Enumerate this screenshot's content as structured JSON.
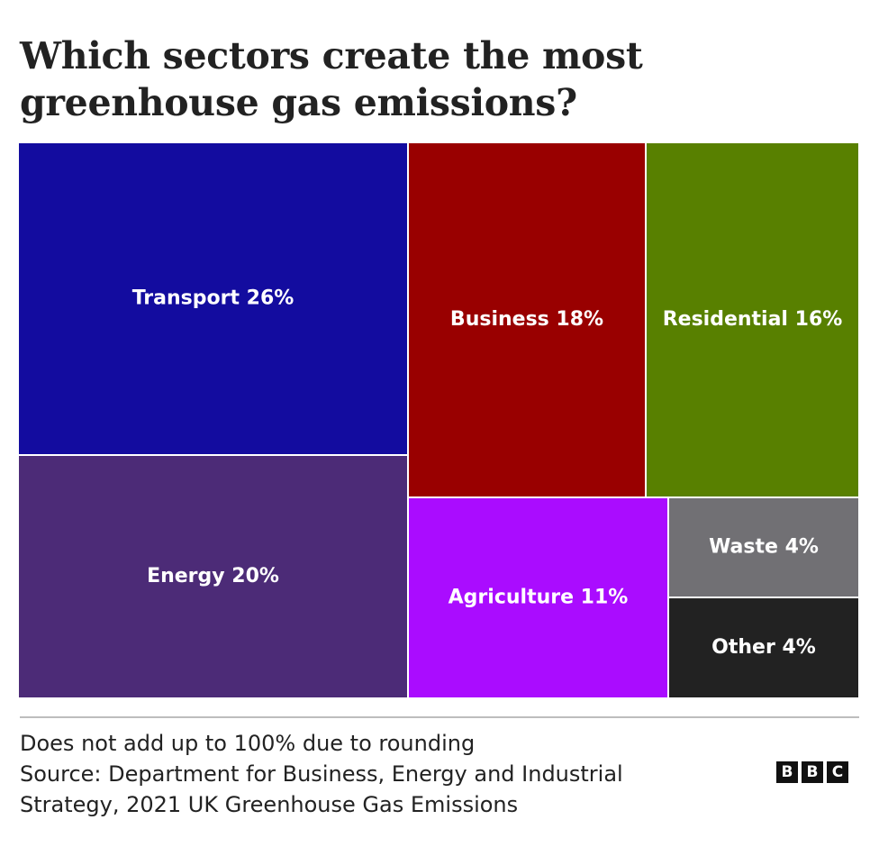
{
  "title": "Which sectors create the most greenhouse gas emissions?",
  "chart_data": {
    "type": "treemap",
    "title": "Which sectors create the most greenhouse gas emissions?",
    "unit": "%",
    "items": [
      {
        "name": "Transport",
        "value": 26,
        "label": "Transport 26%",
        "color": "#130c9f"
      },
      {
        "name": "Energy",
        "value": 20,
        "label": "Energy 20%",
        "color": "#4c2b77"
      },
      {
        "name": "Business",
        "value": 18,
        "label": "Business 18%",
        "color": "#990000"
      },
      {
        "name": "Residential",
        "value": 16,
        "label": "Residential 16%",
        "color": "#588000"
      },
      {
        "name": "Agriculture",
        "value": 11,
        "label": "Agriculture 11%",
        "color": "#aa0cff"
      },
      {
        "name": "Waste",
        "value": 4,
        "label": "Waste 4%",
        "color": "#717074"
      },
      {
        "name": "Other",
        "value": 4,
        "label": "Other 4%",
        "color": "#222222"
      }
    ]
  },
  "footer": {
    "note": "Does not add up to 100% due to rounding",
    "source_line1": "Source: Department for Business, Energy and Industrial",
    "source_line2": "Strategy, 2021 UK Greenhouse Gas Emissions"
  },
  "logo": {
    "letters": [
      "B",
      "B",
      "C"
    ]
  }
}
